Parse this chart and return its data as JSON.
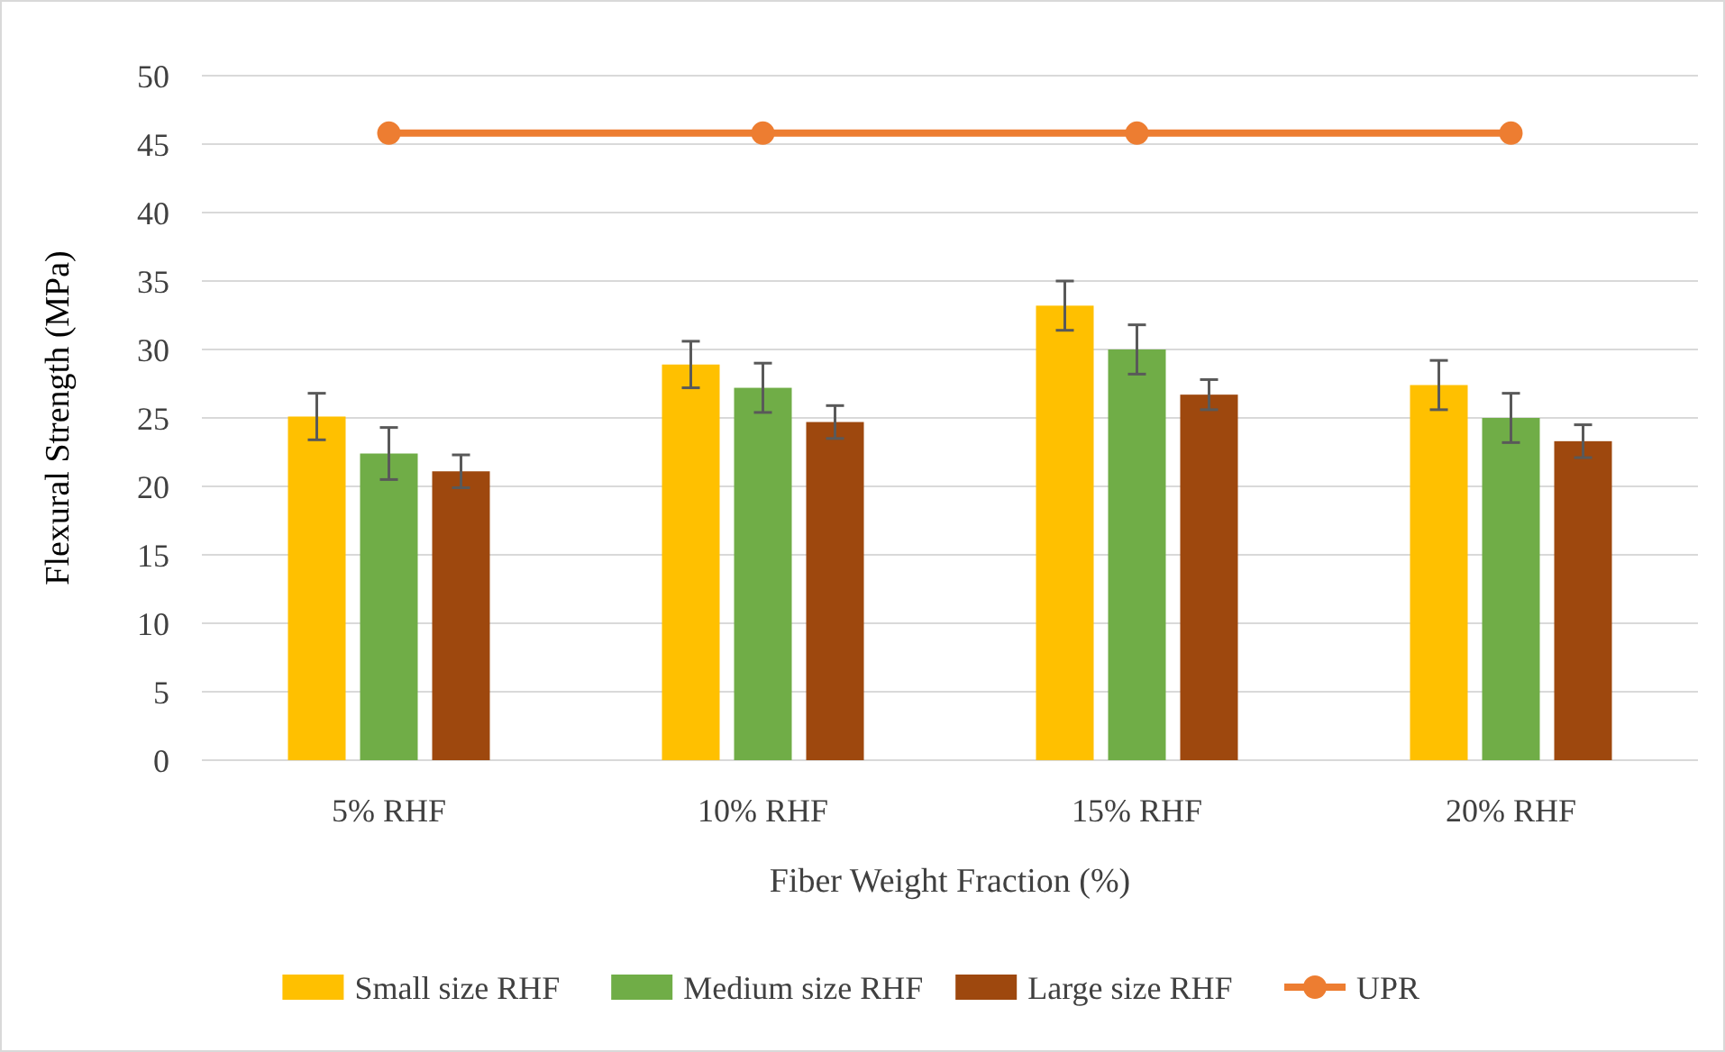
{
  "chart_data": {
    "type": "bar",
    "xlabel": "Fiber Weight Fraction (%)",
    "ylabel": "Flexural Strength (MPa)",
    "categories": [
      "5% RHF",
      "10% RHF",
      "15% RHF",
      "20% RHF"
    ],
    "series": [
      {
        "name": "Small size RHF",
        "color": "#ffc000",
        "values": [
          25.1,
          28.9,
          33.2,
          27.4
        ],
        "errors": [
          1.7,
          1.7,
          1.8,
          1.8
        ]
      },
      {
        "name": "Medium size RHF",
        "color": "#70ad47",
        "values": [
          22.4,
          27.2,
          30.0,
          25.0
        ],
        "errors": [
          1.9,
          1.8,
          1.8,
          1.8
        ]
      },
      {
        "name": "Large size RHF",
        "color": "#9e480e",
        "values": [
          21.1,
          24.7,
          26.7,
          23.3
        ],
        "errors": [
          1.2,
          1.2,
          1.1,
          1.2
        ]
      },
      {
        "name": "UPR",
        "type": "line",
        "color": "#ed7d31",
        "values": [
          45.8,
          45.8,
          45.8,
          45.8
        ],
        "marker": "circle"
      }
    ],
    "ylim": [
      0,
      50
    ],
    "yticks": [
      0,
      5,
      10,
      15,
      20,
      25,
      30,
      35,
      40,
      45,
      50
    ],
    "grid": "y",
    "legend": "bottom"
  }
}
